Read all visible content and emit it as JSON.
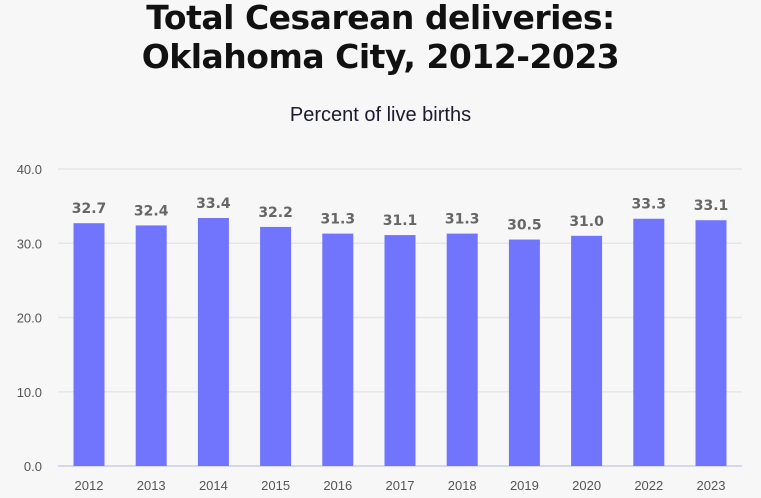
{
  "chart_data": {
    "type": "bar",
    "title_lines": [
      "Total Cesarean deliveries:",
      "Oklahoma City, 2012-2023"
    ],
    "subtitle": "Percent of live births",
    "categories": [
      "2012",
      "2013",
      "2014",
      "2015",
      "2016",
      "2017",
      "2018",
      "2019",
      "2020",
      "2022",
      "2023"
    ],
    "values": [
      32.7,
      32.4,
      33.4,
      32.2,
      31.3,
      31.1,
      31.3,
      30.5,
      31.0,
      33.3,
      33.1
    ],
    "data_labels": [
      "32.7",
      "32.4",
      "33.4",
      "32.2",
      "31.3",
      "31.1",
      "31.3",
      "30.5",
      "31.0",
      "33.3",
      "33.1"
    ],
    "ylim": [
      0,
      40
    ],
    "yticks": [
      "0.0",
      "10.0",
      "20.0",
      "30.0",
      "40.0"
    ],
    "grid": true,
    "bar_color": "#7174fc"
  }
}
